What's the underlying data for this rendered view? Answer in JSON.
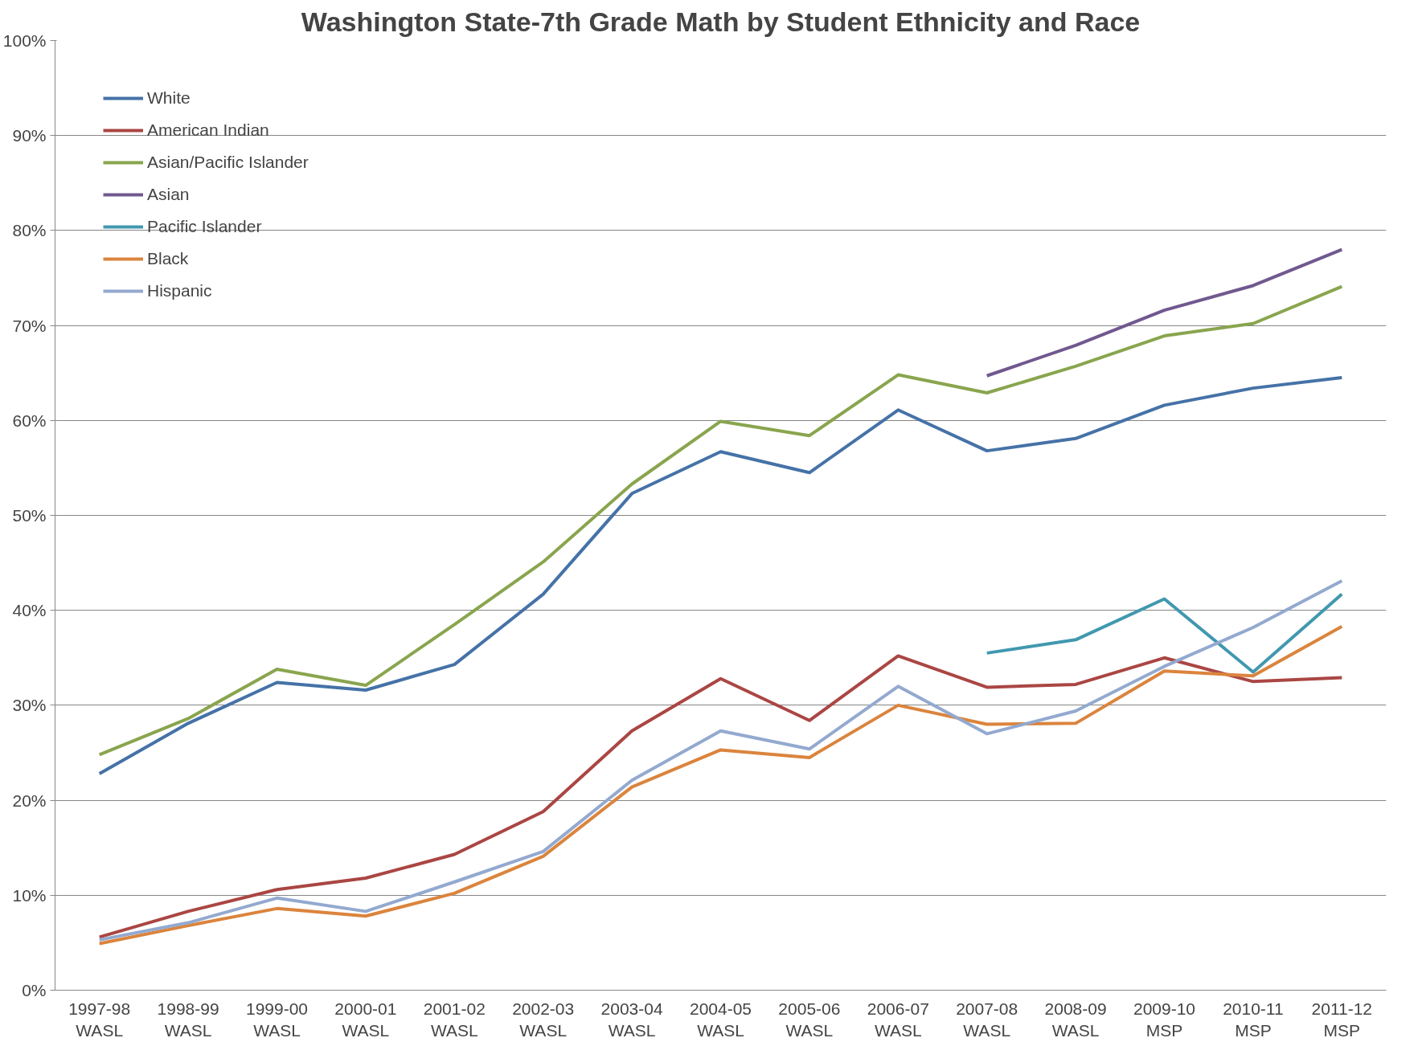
{
  "chart_data": {
    "type": "line",
    "title": "Washington State-7th Grade Math by Student Ethnicity and Race",
    "categories": [
      "1997-98\nWASL",
      "1998-99\nWASL",
      "1999-00\nWASL",
      "2000-01\nWASL",
      "2001-02\nWASL",
      "2002-03\nWASL",
      "2003-04\nWASL",
      "2004-05\nWASL",
      "2005-06\nWASL",
      "2006-07\nWASL",
      "2007-08\nWASL",
      "2008-09\nWASL",
      "2009-10\nMSP",
      "2010-11\nMSP",
      "2011-12\nMSP"
    ],
    "series": [
      {
        "name": "White",
        "color": "#4572a7",
        "values": [
          22.8,
          28.1,
          32.4,
          31.6,
          34.3,
          41.7,
          52.3,
          56.7,
          54.5,
          61.1,
          56.8,
          58.1,
          61.6,
          63.4,
          64.5
        ]
      },
      {
        "name": "American Indian",
        "color": "#aa4643",
        "values": [
          5.6,
          8.3,
          10.6,
          11.8,
          14.3,
          18.8,
          27.3,
          32.8,
          28.4,
          35.2,
          31.9,
          32.2,
          35.0,
          32.5,
          32.9
        ]
      },
      {
        "name": "Asian/Pacific Islander",
        "color": "#89a54e",
        "values": [
          24.8,
          28.6,
          33.8,
          32.1,
          38.5,
          45.1,
          53.3,
          59.9,
          58.4,
          64.8,
          62.9,
          65.7,
          68.9,
          70.2,
          74.1
        ]
      },
      {
        "name": "Asian",
        "color": "#71588f",
        "values": [
          null,
          null,
          null,
          null,
          null,
          null,
          null,
          null,
          null,
          null,
          64.7,
          67.9,
          71.6,
          74.2,
          78.0
        ]
      },
      {
        "name": "Pacific Islander",
        "color": "#4198af",
        "values": [
          null,
          null,
          null,
          null,
          null,
          null,
          null,
          null,
          null,
          null,
          35.5,
          36.9,
          41.2,
          33.5,
          41.7
        ]
      },
      {
        "name": "Black",
        "color": "#db843d",
        "values": [
          4.9,
          6.8,
          8.6,
          7.8,
          10.2,
          14.1,
          21.4,
          25.3,
          24.5,
          30.0,
          28.0,
          28.1,
          33.6,
          33.1,
          38.3
        ]
      },
      {
        "name": "Hispanic",
        "color": "#93a9cf",
        "values": [
          5.3,
          7.1,
          9.7,
          8.3,
          11.4,
          14.6,
          22.1,
          27.3,
          25.4,
          32.0,
          27.0,
          29.4,
          34.1,
          38.2,
          43.1
        ]
      }
    ],
    "ylim": [
      0,
      100
    ],
    "yticks": [
      {
        "value": 0,
        "label": "0%"
      },
      {
        "value": 10,
        "label": "10%"
      },
      {
        "value": 20,
        "label": "20%"
      },
      {
        "value": 30,
        "label": "30%"
      },
      {
        "value": 40,
        "label": "40%"
      },
      {
        "value": 50,
        "label": "50%"
      },
      {
        "value": 60,
        "label": "60%"
      },
      {
        "value": 70,
        "label": "70%"
      },
      {
        "value": 80,
        "label": "80%"
      },
      {
        "value": 90,
        "label": "90%"
      },
      {
        "value": 100,
        "label": "100%"
      }
    ],
    "grid": "y",
    "legend": "top left",
    "marker": "none",
    "line_style": "solid"
  }
}
